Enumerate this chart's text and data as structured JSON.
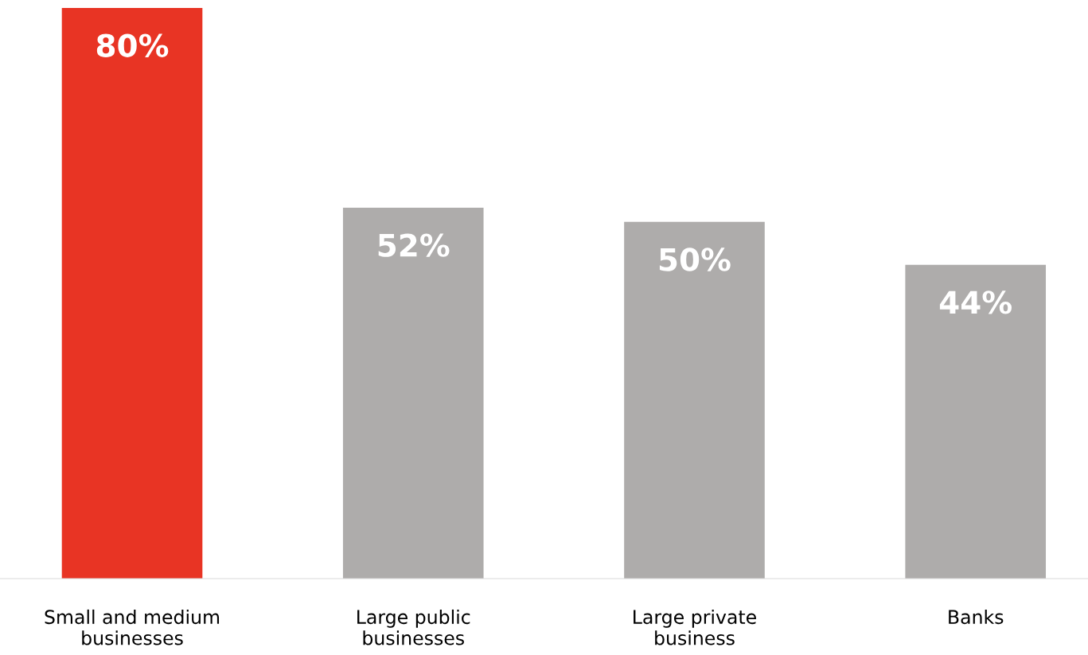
{
  "chart_data": {
    "type": "bar",
    "categories": [
      "Small and medium businesses",
      "Large public businesses",
      "Large private business",
      "Banks"
    ],
    "values": [
      80,
      52,
      50,
      44
    ],
    "colors": [
      "#e83424",
      "#aeacab",
      "#aeacab",
      "#aeacab"
    ],
    "value_labels": [
      "80%",
      "52%",
      "50%",
      "44%"
    ],
    "ylim": [
      0,
      80
    ],
    "tick_labels": "x",
    "grid": false,
    "legend": false
  }
}
